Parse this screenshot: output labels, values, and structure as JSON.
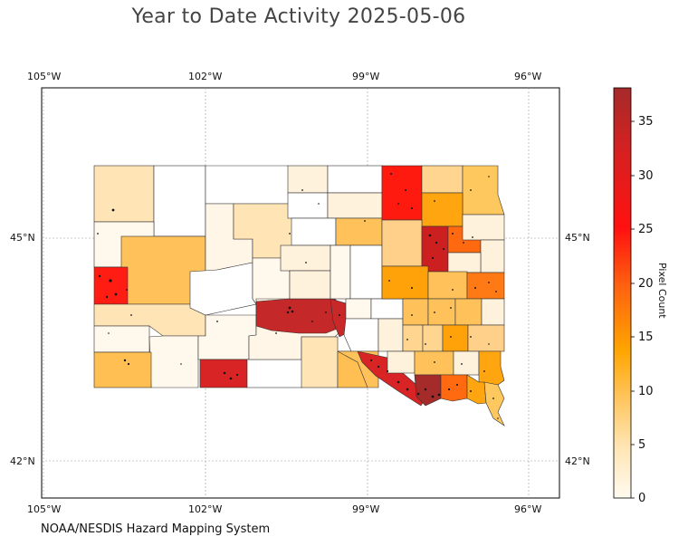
{
  "header": {
    "title": "Year to Date Activity 2025-05-06"
  },
  "footer": {
    "credit": "NOAA/NESDIS Hazard Mapping System"
  },
  "map": {
    "longitude_ticks": [
      "105°W",
      "102°W",
      "99°W",
      "96°W"
    ],
    "latitude_ticks": [
      "45°N",
      "42°N"
    ],
    "lon_range": [
      -105.1,
      -95.4
    ],
    "lat_range": [
      41.55,
      46.35
    ],
    "grid": true,
    "region": "South Dakota counties"
  },
  "colorbar": {
    "label": "Pixel Count",
    "ticks": [
      "0",
      "5",
      "10",
      "15",
      "20",
      "25",
      "30",
      "35"
    ],
    "range": [
      0,
      38
    ],
    "colors": [
      "#fff8ea",
      "#ffe3b0",
      "#ffc45a",
      "#ffa20a",
      "#ff6a10",
      "#ff1a10",
      "#cc2020",
      "#a52a2a"
    ]
  }
}
